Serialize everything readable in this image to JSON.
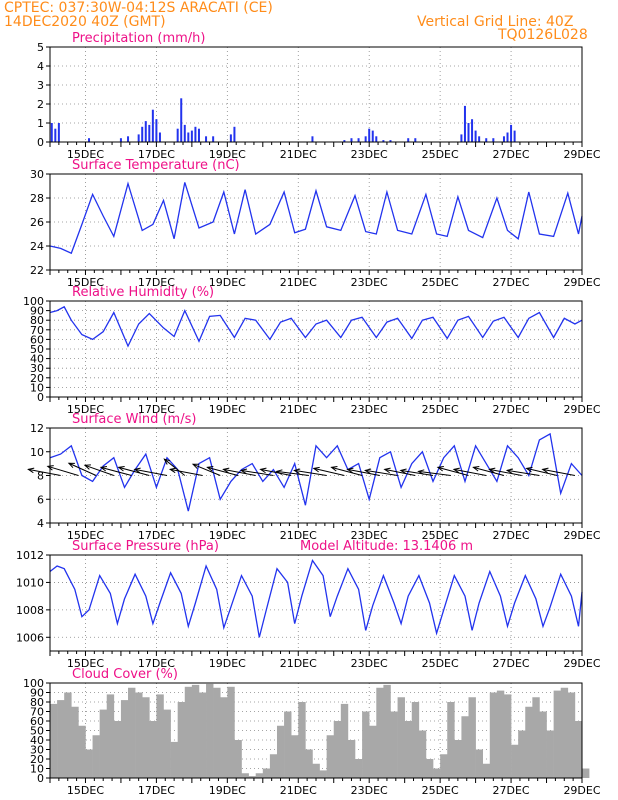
{
  "header": {
    "line1_left": "CPTEC:  037:30W-04:12S  ARACATI (CE)",
    "line2_left": "14DEC2020 40Z (GMT)",
    "line1_right": "Vertical Grid Line: 40Z",
    "line2_right": "TQ0126L028",
    "color": "#ff8c1a"
  },
  "colors": {
    "series": "#2233ee",
    "title": "#ee1188",
    "cloud": "#a8a8a8",
    "bars": "#2233ee",
    "arrows": "#000000"
  },
  "chart_data": [
    {
      "type": "bar",
      "title": "Precipitation (mm/h)",
      "x_tick_labels": [
        "15DEC",
        "17DEC",
        "19DEC",
        "21DEC",
        "23DEC",
        "25DEC",
        "27DEC",
        "29DEC"
      ],
      "x_range_days": [
        14.0,
        29.0
      ],
      "ylim": [
        0,
        5
      ],
      "yticks": [
        0,
        1,
        2,
        3,
        4,
        5
      ],
      "series": [
        {
          "x": [
            14.05,
            14.15,
            14.25,
            15.1,
            16.0,
            16.2,
            16.5,
            16.6,
            16.7,
            16.8,
            16.9,
            17.0,
            17.1,
            17.6,
            17.7,
            17.8,
            17.9,
            18.0,
            18.1,
            18.2,
            18.4,
            18.6,
            19.1,
            19.2,
            21.4,
            22.3,
            22.5,
            22.7,
            22.9,
            23.0,
            23.1,
            23.2,
            23.4,
            23.6,
            24.1,
            24.3,
            25.6,
            25.7,
            25.8,
            25.9,
            26.0,
            26.1,
            26.3,
            26.5,
            26.8,
            26.9,
            27.0,
            27.1
          ],
          "y": [
            1.0,
            0.7,
            1.0,
            0.2,
            0.2,
            0.3,
            0.4,
            0.8,
            1.1,
            0.9,
            1.7,
            1.2,
            0.5,
            0.7,
            2.3,
            0.9,
            0.5,
            0.6,
            0.8,
            0.7,
            0.3,
            0.3,
            0.4,
            0.8,
            0.3,
            0.1,
            0.2,
            0.2,
            0.3,
            0.7,
            0.6,
            0.3,
            0.1,
            0.1,
            0.2,
            0.2,
            0.4,
            1.9,
            1.0,
            1.2,
            0.6,
            0.3,
            0.2,
            0.2,
            0.3,
            0.5,
            0.9,
            0.6
          ]
        }
      ]
    },
    {
      "type": "line",
      "title": "Surface Temperature (nC)",
      "x_tick_labels": [
        "15DEC",
        "17DEC",
        "19DEC",
        "21DEC",
        "23DEC",
        "25DEC",
        "27DEC",
        "29DEC"
      ],
      "x_range_days": [
        14.0,
        29.0
      ],
      "ylim": [
        22,
        30
      ],
      "yticks": [
        22,
        24,
        26,
        28,
        30
      ],
      "series": [
        {
          "x": [
            14.0,
            14.3,
            14.6,
            14.9,
            15.2,
            15.5,
            15.8,
            16.2,
            16.6,
            16.9,
            17.2,
            17.5,
            17.8,
            18.2,
            18.6,
            18.9,
            19.2,
            19.5,
            19.8,
            20.2,
            20.6,
            20.9,
            21.2,
            21.5,
            21.8,
            22.2,
            22.6,
            22.9,
            23.2,
            23.5,
            23.8,
            24.2,
            24.6,
            24.9,
            25.2,
            25.5,
            25.8,
            26.2,
            26.6,
            26.9,
            27.2,
            27.5,
            27.8,
            28.2,
            28.6,
            28.9,
            29.0
          ],
          "y": [
            24.0,
            23.8,
            23.4,
            25.8,
            28.3,
            26.5,
            24.8,
            29.2,
            25.3,
            25.8,
            27.8,
            24.6,
            29.3,
            25.5,
            26.0,
            28.5,
            25.0,
            28.7,
            25.0,
            25.8,
            28.5,
            25.1,
            25.4,
            28.6,
            25.6,
            25.3,
            28.2,
            25.2,
            25.0,
            28.5,
            25.3,
            25.0,
            28.3,
            25.0,
            24.8,
            28.1,
            25.3,
            24.7,
            28.0,
            25.3,
            24.6,
            28.5,
            25.0,
            24.8,
            28.4,
            25.0,
            26.5
          ]
        }
      ]
    },
    {
      "type": "line",
      "title": "Relative Humidity (%)",
      "x_tick_labels": [
        "15DEC",
        "17DEC",
        "19DEC",
        "21DEC",
        "23DEC",
        "25DEC",
        "27DEC",
        "29DEC"
      ],
      "x_range_days": [
        14.0,
        29.0
      ],
      "ylim": [
        0,
        100
      ],
      "yticks": [
        0,
        10,
        20,
        30,
        40,
        50,
        60,
        70,
        80,
        90,
        100
      ],
      "series": [
        {
          "x": [
            14.0,
            14.2,
            14.4,
            14.6,
            14.9,
            15.2,
            15.5,
            15.8,
            16.2,
            16.5,
            16.8,
            17.2,
            17.5,
            17.8,
            18.2,
            18.5,
            18.8,
            19.2,
            19.5,
            19.8,
            20.2,
            20.5,
            20.8,
            21.2,
            21.5,
            21.8,
            22.2,
            22.5,
            22.8,
            23.2,
            23.5,
            23.8,
            24.2,
            24.5,
            24.8,
            25.2,
            25.5,
            25.8,
            26.2,
            26.5,
            26.8,
            27.2,
            27.5,
            27.8,
            28.2,
            28.5,
            28.8,
            29.0
          ],
          "y": [
            88,
            90,
            94,
            80,
            65,
            60,
            68,
            88,
            53,
            76,
            87,
            72,
            63,
            90,
            58,
            84,
            85,
            62,
            82,
            80,
            60,
            78,
            82,
            62,
            76,
            80,
            62,
            80,
            83,
            62,
            78,
            82,
            61,
            80,
            83,
            61,
            80,
            84,
            62,
            79,
            83,
            62,
            82,
            88,
            62,
            82,
            76,
            80
          ]
        }
      ]
    },
    {
      "type": "line",
      "title": "Surface Wind (m/s)",
      "x_tick_labels": [
        "15DEC",
        "17DEC",
        "19DEC",
        "21DEC",
        "23DEC",
        "25DEC",
        "27DEC",
        "29DEC"
      ],
      "x_range_days": [
        14.0,
        29.0
      ],
      "ylim": [
        4,
        12
      ],
      "yticks": [
        4,
        6,
        8,
        10,
        12
      ],
      "series": [
        {
          "x": [
            14.0,
            14.3,
            14.6,
            14.9,
            15.2,
            15.5,
            15.8,
            16.1,
            16.4,
            16.7,
            17.0,
            17.3,
            17.6,
            17.9,
            18.2,
            18.5,
            18.8,
            19.1,
            19.4,
            19.7,
            20.0,
            20.3,
            20.6,
            20.9,
            21.2,
            21.5,
            21.8,
            22.1,
            22.4,
            22.7,
            23.0,
            23.3,
            23.6,
            23.9,
            24.2,
            24.5,
            24.8,
            25.1,
            25.4,
            25.7,
            26.0,
            26.3,
            26.6,
            26.9,
            27.2,
            27.5,
            27.8,
            28.1,
            28.4,
            28.7,
            29.0
          ],
          "y": [
            9.5,
            9.8,
            10.5,
            8.0,
            7.5,
            8.8,
            9.5,
            7.0,
            8.5,
            9.8,
            7.0,
            9.5,
            8.5,
            5.0,
            9.0,
            9.5,
            6.0,
            7.5,
            8.5,
            9.0,
            7.5,
            8.5,
            7.0,
            9.0,
            5.5,
            10.5,
            9.5,
            10.5,
            8.5,
            9.0,
            6.0,
            9.5,
            10.0,
            7.0,
            9.0,
            10.0,
            7.5,
            9.5,
            10.5,
            7.5,
            10.5,
            9.0,
            7.5,
            10.5,
            9.5,
            8.0,
            11.0,
            11.5,
            6.5,
            9.0,
            8.0
          ]
        }
      ],
      "wind_vectors": {
        "x": [
          14.3,
          14.8,
          15.3,
          15.8,
          16.3,
          16.8,
          17.3,
          17.8,
          18.3,
          18.8,
          19.3,
          19.8,
          20.3,
          20.8,
          21.3,
          21.8,
          22.3,
          22.8,
          23.3,
          23.8,
          24.3,
          24.8,
          25.3,
          25.8,
          26.3,
          26.8,
          27.3,
          27.8,
          28.3,
          28.8
        ],
        "dir_x": [
          -0.95,
          -0.9,
          -0.8,
          -0.85,
          -0.9,
          -0.9,
          -0.95,
          -0.6,
          -0.95,
          -0.8,
          -0.9,
          -0.95,
          -0.95,
          -0.9,
          -0.95,
          -0.95,
          -0.9,
          -0.9,
          -0.95,
          -0.95,
          -0.9,
          -0.95,
          -0.95,
          -0.9,
          -0.95,
          -0.9,
          -0.95,
          -0.95,
          -0.9,
          -0.95
        ],
        "dir_y": [
          0.3,
          0.45,
          0.6,
          0.5,
          0.4,
          0.4,
          0.3,
          0.8,
          0.3,
          0.55,
          0.4,
          0.3,
          0.25,
          0.3,
          0.2,
          0.25,
          0.35,
          0.4,
          0.3,
          0.25,
          0.3,
          0.25,
          0.2,
          0.4,
          0.3,
          0.4,
          0.3,
          0.25,
          0.35,
          0.3
        ]
      }
    },
    {
      "type": "line",
      "title": "Surface Pressure (hPa)",
      "annotation": "Model Altitude: 13.1406 m",
      "x_tick_labels": [
        "15DEC",
        "17DEC",
        "19DEC",
        "21DEC",
        "23DEC",
        "25DEC",
        "27DEC",
        "29DEC"
      ],
      "x_range_days": [
        14.0,
        29.0
      ],
      "ylim": [
        1005,
        1012
      ],
      "yticks": [
        1006,
        1008,
        1010,
        1012
      ],
      "series": [
        {
          "x": [
            14.0,
            14.2,
            14.4,
            14.7,
            14.9,
            15.1,
            15.4,
            15.7,
            15.9,
            16.1,
            16.4,
            16.7,
            16.9,
            17.1,
            17.4,
            17.7,
            17.9,
            18.1,
            18.4,
            18.7,
            18.9,
            19.1,
            19.4,
            19.7,
            19.9,
            20.1,
            20.4,
            20.7,
            20.9,
            21.1,
            21.4,
            21.7,
            21.9,
            22.1,
            22.4,
            22.7,
            22.9,
            23.1,
            23.4,
            23.7,
            23.9,
            24.1,
            24.4,
            24.7,
            24.9,
            25.1,
            25.4,
            25.7,
            25.9,
            26.1,
            26.4,
            26.7,
            26.9,
            27.1,
            27.4,
            27.7,
            27.9,
            28.1,
            28.4,
            28.7,
            28.9,
            29.0
          ],
          "y": [
            1010.8,
            1011.2,
            1011.0,
            1009.5,
            1007.5,
            1008.0,
            1010.5,
            1009.2,
            1007.0,
            1008.8,
            1010.6,
            1009.0,
            1007.0,
            1008.5,
            1010.7,
            1009.2,
            1006.8,
            1008.5,
            1011.2,
            1009.5,
            1006.7,
            1008.2,
            1010.5,
            1009.0,
            1006.0,
            1008.0,
            1011.0,
            1010.0,
            1007.0,
            1009.0,
            1011.6,
            1010.5,
            1007.5,
            1009.0,
            1011.0,
            1009.5,
            1006.5,
            1008.3,
            1010.5,
            1008.5,
            1007.0,
            1009.0,
            1010.5,
            1008.5,
            1006.3,
            1008.0,
            1010.5,
            1009.0,
            1006.5,
            1008.5,
            1010.8,
            1009.0,
            1006.8,
            1008.5,
            1010.5,
            1008.8,
            1006.8,
            1008.2,
            1010.6,
            1009.0,
            1006.8,
            1009.3
          ]
        }
      ]
    },
    {
      "type": "area",
      "title": "Cloud Cover (%)",
      "x_tick_labels": [
        "15DEC",
        "17DEC",
        "19DEC",
        "21DEC",
        "23DEC",
        "25DEC",
        "27DEC",
        "29DEC"
      ],
      "x_range_days": [
        14.0,
        29.0
      ],
      "ylim": [
        0,
        100
      ],
      "yticks": [
        0,
        10,
        20,
        30,
        40,
        50,
        60,
        70,
        80,
        90,
        100
      ],
      "series": [
        {
          "x": [
            14.0,
            14.2,
            14.4,
            14.6,
            14.8,
            15.0,
            15.2,
            15.4,
            15.6,
            15.8,
            16.0,
            16.2,
            16.4,
            16.6,
            16.8,
            17.0,
            17.2,
            17.4,
            17.6,
            17.8,
            18.0,
            18.2,
            18.4,
            18.6,
            18.8,
            19.0,
            19.2,
            19.4,
            19.6,
            19.8,
            20.0,
            20.2,
            20.4,
            20.6,
            20.8,
            21.0,
            21.2,
            21.4,
            21.6,
            21.8,
            22.0,
            22.2,
            22.4,
            22.6,
            22.8,
            23.0,
            23.2,
            23.4,
            23.6,
            23.8,
            24.0,
            24.2,
            24.4,
            24.6,
            24.8,
            25.0,
            25.2,
            25.4,
            25.6,
            25.8,
            26.0,
            26.2,
            26.4,
            26.6,
            26.8,
            27.0,
            27.2,
            27.4,
            27.6,
            27.8,
            28.0,
            28.2,
            28.4,
            28.6,
            28.8,
            29.0
          ],
          "y": [
            78,
            82,
            90,
            75,
            55,
            30,
            45,
            72,
            88,
            60,
            82,
            95,
            90,
            85,
            60,
            88,
            72,
            38,
            80,
            96,
            98,
            90,
            99,
            95,
            85,
            96,
            40,
            5,
            2,
            5,
            10,
            25,
            55,
            70,
            45,
            80,
            30,
            15,
            8,
            45,
            60,
            78,
            40,
            20,
            70,
            55,
            95,
            98,
            70,
            85,
            60,
            80,
            50,
            20,
            10,
            25,
            80,
            40,
            65,
            85,
            30,
            15,
            90,
            92,
            88,
            35,
            50,
            75,
            85,
            70,
            50,
            92,
            95,
            90,
            60,
            10
          ]
        }
      ]
    }
  ]
}
